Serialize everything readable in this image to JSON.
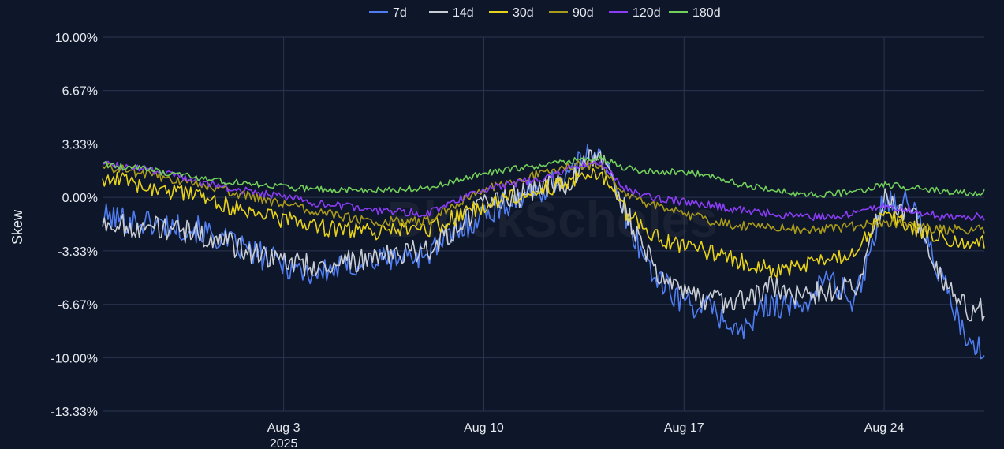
{
  "chart_data": {
    "type": "line",
    "title": "",
    "xlabel": "",
    "ylabel": "Skew",
    "watermark": "BlockScholes",
    "x_axis": {
      "type": "date",
      "range": [
        "2025-07-27T16:00",
        "2025-08-27T12:00"
      ],
      "ticks": [
        {
          "date": "2025-08-03",
          "label": "Aug 3",
          "sublabel": "2025"
        },
        {
          "date": "2025-08-10",
          "label": "Aug 10",
          "sublabel": ""
        },
        {
          "date": "2025-08-17",
          "label": "Aug 17",
          "sublabel": ""
        },
        {
          "date": "2025-08-24",
          "label": "Aug 24",
          "sublabel": ""
        }
      ]
    },
    "y_axis": {
      "unit": "%",
      "range": [
        -13.33,
        10.0
      ],
      "ticks": [
        10.0,
        6.67,
        3.33,
        0.0,
        -3.33,
        -6.67,
        -10.0,
        -13.33
      ],
      "tick_labels": [
        "10.00%",
        "6.67%",
        "3.33%",
        "0.00%",
        "-3.33%",
        "-6.67%",
        "-10.00%",
        "-13.33%"
      ]
    },
    "grid": true,
    "legend": "top-center",
    "series": [
      {
        "name": "7d",
        "color": "#4f7df0",
        "volatility": 0.85,
        "x": [
          "2025-07-27",
          "2025-07-29",
          "2025-07-31",
          "2025-08-02",
          "2025-08-04",
          "2025-08-06",
          "2025-08-08",
          "2025-08-10",
          "2025-08-12",
          "2025-08-13",
          "2025-08-14",
          "2025-08-15",
          "2025-08-16",
          "2025-08-17",
          "2025-08-18",
          "2025-08-19",
          "2025-08-20",
          "2025-08-21",
          "2025-08-22",
          "2025-08-23",
          "2025-08-24",
          "2025-08-25",
          "2025-08-26",
          "2025-08-27"
        ],
        "y": [
          -1.0,
          -1.5,
          -2.0,
          -3.5,
          -4.8,
          -4.0,
          -3.5,
          -1.0,
          0.5,
          1.5,
          3.2,
          -1.5,
          -5.0,
          -6.5,
          -7.0,
          -8.5,
          -6.5,
          -7.0,
          -5.0,
          -6.5,
          0.0,
          -0.5,
          -5.0,
          -9.5
        ]
      },
      {
        "name": "14d",
        "color": "#c8ccd4",
        "volatility": 0.75,
        "x": [
          "2025-07-27",
          "2025-07-29",
          "2025-07-31",
          "2025-08-02",
          "2025-08-04",
          "2025-08-06",
          "2025-08-08",
          "2025-08-10",
          "2025-08-12",
          "2025-08-13",
          "2025-08-14",
          "2025-08-15",
          "2025-08-16",
          "2025-08-17",
          "2025-08-18",
          "2025-08-19",
          "2025-08-20",
          "2025-08-21",
          "2025-08-22",
          "2025-08-23",
          "2025-08-24",
          "2025-08-25",
          "2025-08-26",
          "2025-08-27"
        ],
        "y": [
          -1.5,
          -1.8,
          -2.2,
          -3.5,
          -4.3,
          -3.8,
          -3.3,
          -0.5,
          0.5,
          1.0,
          3.0,
          -1.0,
          -4.5,
          -6.0,
          -6.5,
          -6.5,
          -5.5,
          -6.0,
          -6.0,
          -5.5,
          0.0,
          -1.0,
          -5.0,
          -7.0
        ]
      },
      {
        "name": "30d",
        "color": "#e6d21a",
        "volatility": 0.55,
        "x": [
          "2025-07-27",
          "2025-07-29",
          "2025-07-31",
          "2025-08-02",
          "2025-08-04",
          "2025-08-06",
          "2025-08-08",
          "2025-08-10",
          "2025-08-12",
          "2025-08-13",
          "2025-08-14",
          "2025-08-15",
          "2025-08-16",
          "2025-08-17",
          "2025-08-18",
          "2025-08-19",
          "2025-08-20",
          "2025-08-21",
          "2025-08-22",
          "2025-08-23",
          "2025-08-24",
          "2025-08-25",
          "2025-08-26",
          "2025-08-27"
        ],
        "y": [
          1.5,
          0.8,
          0.0,
          -1.0,
          -1.8,
          -2.2,
          -2.0,
          -0.5,
          0.5,
          1.0,
          1.5,
          -1.0,
          -2.5,
          -3.0,
          -3.5,
          -4.0,
          -4.5,
          -4.3,
          -4.0,
          -3.3,
          -1.0,
          -2.0,
          -2.5,
          -2.8
        ]
      },
      {
        "name": "90d",
        "color": "#a89a1a",
        "volatility": 0.3,
        "x": [
          "2025-07-27",
          "2025-07-29",
          "2025-07-31",
          "2025-08-02",
          "2025-08-04",
          "2025-08-06",
          "2025-08-08",
          "2025-08-10",
          "2025-08-12",
          "2025-08-13",
          "2025-08-14",
          "2025-08-15",
          "2025-08-16",
          "2025-08-17",
          "2025-08-18",
          "2025-08-19",
          "2025-08-20",
          "2025-08-21",
          "2025-08-22",
          "2025-08-23",
          "2025-08-24",
          "2025-08-25",
          "2025-08-26",
          "2025-08-27"
        ],
        "y": [
          2.2,
          1.5,
          0.8,
          0.0,
          -0.8,
          -1.5,
          -1.5,
          0.5,
          1.5,
          2.0,
          2.0,
          0.0,
          -0.5,
          -1.0,
          -1.5,
          -1.8,
          -1.8,
          -2.0,
          -2.0,
          -1.8,
          -1.5,
          -1.8,
          -2.0,
          -2.0
        ]
      },
      {
        "name": "120d",
        "color": "#8a3df5",
        "volatility": 0.25,
        "x": [
          "2025-07-27",
          "2025-07-29",
          "2025-07-31",
          "2025-08-02",
          "2025-08-04",
          "2025-08-06",
          "2025-08-08",
          "2025-08-10",
          "2025-08-12",
          "2025-08-13",
          "2025-08-14",
          "2025-08-15",
          "2025-08-16",
          "2025-08-17",
          "2025-08-18",
          "2025-08-19",
          "2025-08-20",
          "2025-08-21",
          "2025-08-22",
          "2025-08-23",
          "2025-08-24",
          "2025-08-25",
          "2025-08-26",
          "2025-08-27"
        ],
        "y": [
          2.2,
          1.8,
          1.0,
          0.3,
          -0.3,
          -0.8,
          -1.0,
          0.5,
          1.2,
          1.8,
          2.2,
          0.5,
          0.0,
          -0.3,
          -0.5,
          -0.8,
          -1.0,
          -1.2,
          -1.2,
          -1.0,
          -0.5,
          -0.8,
          -1.2,
          -1.2
        ]
      },
      {
        "name": "180d",
        "color": "#72d05a",
        "volatility": 0.2,
        "x": [
          "2025-07-27",
          "2025-07-29",
          "2025-07-31",
          "2025-08-02",
          "2025-08-04",
          "2025-08-06",
          "2025-08-08",
          "2025-08-10",
          "2025-08-12",
          "2025-08-13",
          "2025-08-14",
          "2025-08-15",
          "2025-08-16",
          "2025-08-17",
          "2025-08-18",
          "2025-08-19",
          "2025-08-20",
          "2025-08-21",
          "2025-08-22",
          "2025-08-23",
          "2025-08-24",
          "2025-08-25",
          "2025-08-26",
          "2025-08-27"
        ],
        "y": [
          2.2,
          1.8,
          1.2,
          0.8,
          0.5,
          0.4,
          0.6,
          1.5,
          2.0,
          2.3,
          2.5,
          1.8,
          1.6,
          1.6,
          1.3,
          0.8,
          0.5,
          0.2,
          0.2,
          0.3,
          0.8,
          0.6,
          0.4,
          0.3
        ]
      }
    ]
  }
}
